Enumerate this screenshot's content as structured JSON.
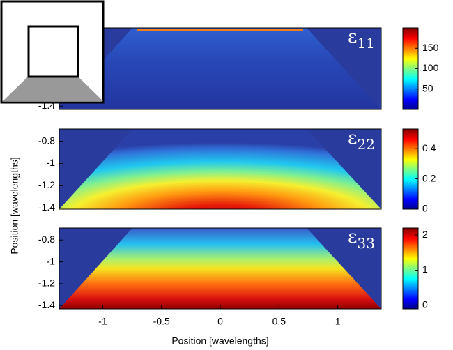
{
  "chart_data": [
    {
      "type": "heatmap",
      "label": "ε",
      "label_sub": "11",
      "colormap": "jet",
      "xlim": [
        -1.37,
        1.37
      ],
      "ylim": [
        -1.43,
        -0.69
      ],
      "yticks": [
        -1.4
      ],
      "clim": [
        0,
        200
      ],
      "cticks": [
        50,
        100,
        150
      ]
    },
    {
      "type": "heatmap",
      "label": "ε",
      "label_sub": "22",
      "colormap": "jet",
      "xlim": [
        -1.37,
        1.37
      ],
      "ylim": [
        -1.41,
        -0.69
      ],
      "yticks": [
        -0.8,
        -1,
        -1.2,
        -1.4
      ],
      "ylabel": "Position [wavelengths]",
      "clim": [
        0,
        0.53
      ],
      "cticks": [
        0,
        0.2,
        0.4
      ]
    },
    {
      "type": "heatmap",
      "label": "ε",
      "label_sub": "33",
      "colormap": "jet",
      "xlim": [
        -1.37,
        1.37
      ],
      "ylim": [
        -1.43,
        -0.69
      ],
      "yticks": [
        -0.8,
        -1,
        -1.2,
        -1.4
      ],
      "xticks": [
        -1,
        -0.5,
        0,
        0.5,
        1
      ],
      "xlabel": "Position [wavelengths]",
      "clim": [
        -0.1,
        2.2
      ],
      "cticks": [
        0,
        1,
        2
      ]
    }
  ]
}
